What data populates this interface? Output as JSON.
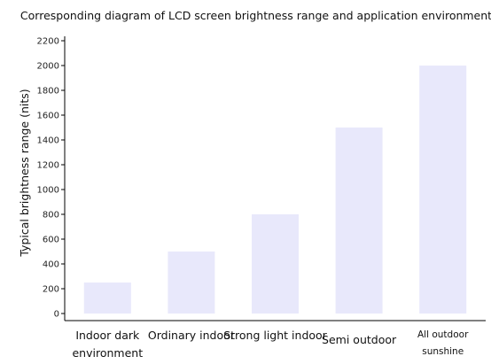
{
  "chart_data": {
    "type": "bar",
    "title": "Corresponding diagram of LCD screen brightness range and application environment",
    "ylabel": "Typical brightness range (nits)",
    "xlabel": "",
    "ylim": [
      0,
      2200
    ],
    "yticks": [
      0,
      200,
      400,
      600,
      800,
      1000,
      1200,
      1400,
      1600,
      1800,
      2000,
      2200
    ],
    "categories": [
      [
        "Indoor dark",
        "environment"
      ],
      [
        "Ordinary indoor"
      ],
      [
        "Strong light indoor"
      ],
      [
        "Semi outdoor"
      ],
      [
        "All outdoor",
        "sunshine"
      ]
    ],
    "values": [
      250,
      500,
      800,
      1500,
      2000
    ],
    "bar_color": "#e8e8fb",
    "axis_color": "#000000",
    "grid": false,
    "legend": "none"
  }
}
